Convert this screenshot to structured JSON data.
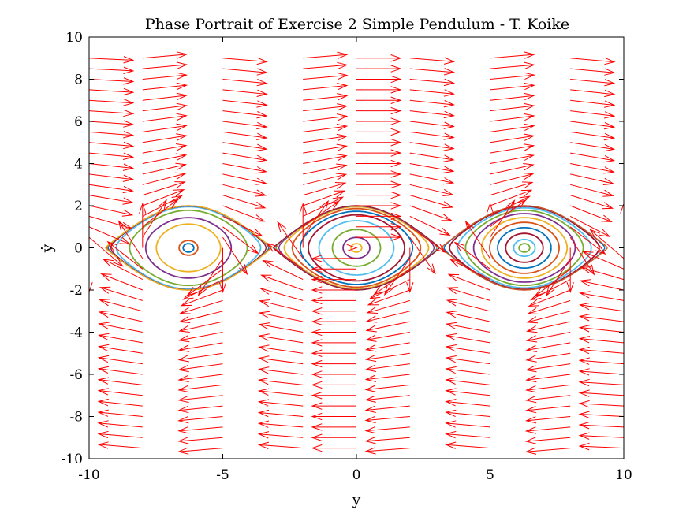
{
  "chart_data": {
    "type": "line",
    "title": "Phase Portrait of Exercise 2 Simple Pendulum - T. Koike",
    "xlabel": "y",
    "ylabel": "ẏ",
    "xlim": [
      -10,
      10
    ],
    "ylim": [
      -10,
      10
    ],
    "xticks": [
      -10,
      -5,
      0,
      5,
      10
    ],
    "xtick_labels": [
      "-10",
      "-5",
      "0",
      "5",
      "10"
    ],
    "yticks": [
      -10,
      -8,
      -6,
      -4,
      -2,
      0,
      2,
      4,
      6,
      8,
      10
    ],
    "ytick_labels": [
      "-10",
      "-8",
      "-6",
      "-4",
      "-2",
      "0",
      "2",
      "4",
      "6",
      "8",
      "10"
    ],
    "grid": false,
    "legend": "none",
    "vector_field": {
      "color": "#ff0000",
      "x_grid": [
        -10,
        -8,
        -5,
        -2,
        0,
        2,
        5,
        8,
        10
      ],
      "y_grid": [
        -9.5,
        -9.0,
        -8.5,
        -8.0,
        -7.5,
        -7.0,
        -6.5,
        -6.0,
        -5.5,
        -5.0,
        -4.5,
        -4.0,
        -3.5,
        -3.0,
        -2.5,
        -2.0,
        -1.5,
        -1.0,
        -0.5,
        0,
        0.5,
        1.0,
        1.5,
        2.0,
        2.5,
        3.0,
        3.5,
        4.0,
        4.5,
        5.0,
        5.5,
        6.0,
        6.5,
        7.0,
        7.5,
        8.0,
        8.5,
        9.0
      ],
      "dynamics": "dx = ẏ, dẏ = -sin(y)"
    },
    "trajectories": {
      "centers": [
        -6.283,
        0,
        6.283
      ],
      "separatrix_halfwidth": 3.14,
      "separatrix_peak": 2.0,
      "colors": [
        "#0072bd",
        "#d95319",
        "#edb120",
        "#7e2f8e",
        "#77ac30",
        "#4dbeee",
        "#a2142f"
      ],
      "series": [
        {
          "center": -6.283,
          "amplitudes": [
            0.2,
            0.35,
            1.2,
            1.6,
            2.2,
            2.7,
            2.9,
            3.0,
            3.05,
            3.1
          ]
        },
        {
          "center": 0,
          "amplitudes": [
            0.2,
            0.5,
            0.9,
            1.4,
            1.8,
            2.1,
            2.4,
            2.7,
            2.9,
            3.0,
            3.05,
            3.1
          ]
        },
        {
          "center": 6.283,
          "amplitudes": [
            0.2,
            0.4,
            0.7,
            1.0,
            1.3,
            1.6,
            1.9,
            2.2,
            2.5,
            2.8,
            3.0,
            3.1
          ]
        }
      ]
    }
  }
}
